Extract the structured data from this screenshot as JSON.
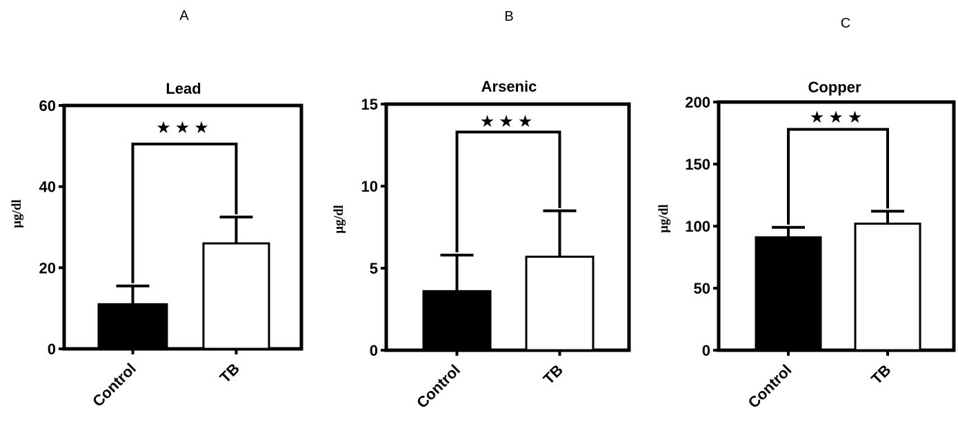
{
  "chart_data": [
    {
      "panel": "A",
      "type": "bar",
      "title": "Lead",
      "ylabel": "μg/dl",
      "ylim": [
        0,
        60
      ],
      "yticks": [
        0,
        20,
        40,
        60
      ],
      "categories": [
        "Control",
        "TB"
      ],
      "values": [
        11,
        26
      ],
      "errors": [
        4.5,
        6.5
      ],
      "bar_colors": [
        "#000000",
        "#ffffff"
      ],
      "significance": "★★★"
    },
    {
      "panel": "B",
      "type": "bar",
      "title": "Arsenic",
      "ylabel": "μg/dl",
      "ylim": [
        0,
        15
      ],
      "yticks": [
        0,
        5,
        10,
        15
      ],
      "categories": [
        "Control",
        "TB"
      ],
      "values": [
        3.6,
        5.7
      ],
      "errors": [
        2.2,
        2.8
      ],
      "bar_colors": [
        "#000000",
        "#ffffff"
      ],
      "significance": "★★★"
    },
    {
      "panel": "C",
      "type": "bar",
      "title": "Copper",
      "ylabel": "μg/dl",
      "ylim": [
        0,
        200
      ],
      "yticks": [
        0,
        50,
        100,
        150,
        200
      ],
      "categories": [
        "Control",
        "TB"
      ],
      "values": [
        91,
        102
      ],
      "errors": [
        8,
        10
      ],
      "bar_colors": [
        "#000000",
        "#ffffff"
      ],
      "significance": "★★★"
    }
  ]
}
